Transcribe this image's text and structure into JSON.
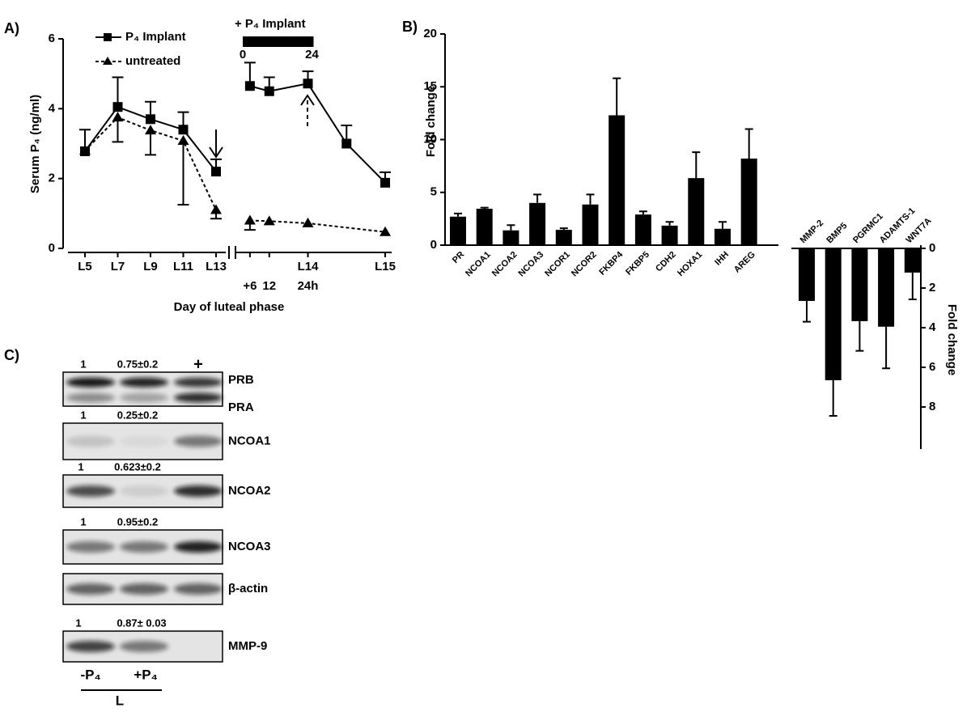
{
  "chart_data": [
    {
      "type": "line",
      "panel": "A)",
      "ylabel": "Serum P₄ (ng/ml)",
      "xlabel": "Day of luteal phase",
      "ylim": [
        0,
        6
      ],
      "yticks": [
        0,
        2,
        4,
        6
      ],
      "series": [
        {
          "name": "P₄ Implant",
          "color": "#000000",
          "marker": "square",
          "dashed": false,
          "error_direction": "up"
        },
        {
          "name": "untreated",
          "color": "#000000",
          "marker": "triangle",
          "dashed": true,
          "error_direction": "down"
        }
      ],
      "segments": [
        {
          "categories": [
            "L5",
            "L7",
            "L9",
            "L11",
            "L13"
          ],
          "series": [
            {
              "values": [
                2.78,
                4.05,
                3.7,
                3.4,
                2.2
              ],
              "errors": [
                0.62,
                0.85,
                0.5,
                0.5,
                0.35
              ]
            },
            {
              "values": [
                2.8,
                3.75,
                3.38,
                3.08,
                1.1
              ],
              "errors": [
                null,
                0.7,
                0.7,
                1.83,
                0.25
              ]
            }
          ]
        },
        {
          "xlim": [
            0,
            50
          ],
          "xticks": [
            {
              "value": 6,
              "label": "+6"
            },
            12,
            {
              "value": 24,
              "label": "24h"
            }
          ],
          "day_ticks": [
            {
              "value": 24,
              "label": "L14"
            },
            {
              "value": 48,
              "label": "L15"
            }
          ],
          "implant": {
            "label": "+ P₄ Implant",
            "start": 0,
            "end": 24
          },
          "series": [
            {
              "x": [
                6,
                12,
                24,
                36,
                48
              ],
              "values": [
                4.65,
                4.5,
                4.72,
                3.0,
                1.88
              ],
              "errors": [
                0.67,
                0.4,
                0.35,
                0.52,
                0.3
              ]
            },
            {
              "x": [
                6,
                12,
                24,
                48
              ],
              "values": [
                0.8,
                0.78,
                0.72,
                0.47
              ],
              "errors": [
                0.27,
                null,
                null,
                null
              ]
            }
          ]
        }
      ]
    },
    {
      "type": "bar",
      "panel": "B)",
      "ylabel": "Fold change",
      "color": "#000000",
      "categories": [
        "PR",
        "NCOA1",
        "NCOA2",
        "NCOA3",
        "NCOR1",
        "NCOR2",
        "FKBP4",
        "FKBP5",
        "CDH2",
        "HOXA1",
        "IHH",
        "AREG"
      ],
      "values": [
        2.7,
        3.45,
        1.4,
        4.0,
        1.45,
        3.85,
        12.3,
        2.9,
        1.85,
        6.35,
        1.55,
        8.2
      ],
      "errors": [
        0.3,
        0.1,
        0.5,
        0.8,
        0.15,
        0.95,
        3.5,
        0.3,
        0.35,
        2.45,
        0.65,
        2.8
      ],
      "ylim": [
        0,
        20
      ],
      "yticks": [
        0,
        5,
        10,
        15,
        20
      ],
      "inverted": false,
      "axis_side": "left"
    },
    {
      "type": "bar",
      "ylabel": "Fold change",
      "color": "#000000",
      "categories": [
        "MMP-2",
        "BMP5",
        "PGRMC1",
        "ADAMTS-1",
        "WNT7A"
      ],
      "values": [
        2.65,
        6.65,
        3.67,
        3.95,
        1.22
      ],
      "errors": [
        1.05,
        1.8,
        1.5,
        2.1,
        1.35
      ],
      "ylim": [
        0,
        10
      ],
      "yticks": [
        0,
        2,
        4,
        6,
        8
      ],
      "inverted": true,
      "axis_side": "right"
    }
  ],
  "blots": {
    "panel": "C)",
    "rows": [
      {
        "labels": [
          "1",
          "0.75±0.2",
          "+"
        ],
        "bands": [
          "PRB",
          "PRA"
        ]
      },
      {
        "labels": [
          "1",
          "0.25±0.2"
        ],
        "bands": [
          "NCOA1"
        ]
      },
      {
        "labels": [
          "1",
          "0.623±0.2"
        ],
        "bands": [
          "NCOA2"
        ]
      },
      {
        "labels": [
          "1",
          "0.95±0.2"
        ],
        "bands": [
          "NCOA3"
        ]
      },
      {
        "labels": [],
        "bands": [
          "β-actin"
        ]
      },
      {
        "labels": [
          "1",
          "0.87± 0.03"
        ],
        "bands": [
          "MMP-9"
        ]
      }
    ],
    "lanes": [
      "-P₄",
      "+P₄"
    ],
    "group": "L"
  }
}
